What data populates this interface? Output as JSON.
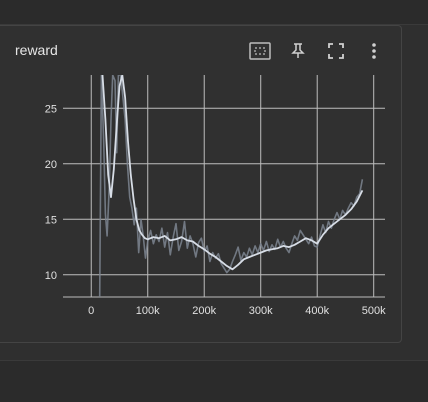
{
  "card": {
    "title": "reward",
    "toolbar": [
      {
        "name": "fit-domain-button",
        "icon": "fit-domain-icon"
      },
      {
        "name": "pin-button",
        "icon": "pin-icon"
      },
      {
        "name": "fullscreen-button",
        "icon": "fullscreen-icon"
      },
      {
        "name": "more-options-button",
        "icon": "more-vert-icon"
      }
    ]
  },
  "colors": {
    "background": "#2f2f2f",
    "card": "#303030",
    "grid": "#bdbdbd",
    "raw_line": "#7d8590",
    "smooth_line": "#d7dde6",
    "tick_text": "#e0e0e0"
  },
  "chart_data": {
    "type": "line",
    "title": "reward",
    "xlabel": "",
    "ylabel": "",
    "xlim": [
      -50000,
      520000
    ],
    "ylim": [
      8,
      28
    ],
    "xticks": [
      0,
      100000,
      200000,
      300000,
      400000,
      500000
    ],
    "xtick_labels": [
      "0",
      "100k",
      "200k",
      "300k",
      "400k",
      "500k"
    ],
    "yticks": [
      10,
      15,
      20,
      25
    ],
    "ytick_labels": [
      "10",
      "15",
      "20",
      "25"
    ],
    "grid": true,
    "series": [
      {
        "style": "raw",
        "x": [
          15000,
          18000,
          22000,
          25000,
          28000,
          32000,
          35000,
          38000,
          42000,
          45000,
          48000,
          52000,
          56000,
          60000,
          64000,
          68000,
          72000,
          76000,
          80000,
          84000,
          88000,
          92000,
          96000,
          100000,
          105000,
          110000,
          115000,
          120000,
          125000,
          130000,
          135000,
          140000,
          145000,
          150000,
          155000,
          160000,
          165000,
          170000,
          175000,
          180000,
          185000,
          190000,
          195000,
          200000,
          205000,
          210000,
          215000,
          220000,
          225000,
          230000,
          235000,
          240000,
          245000,
          250000,
          255000,
          260000,
          265000,
          270000,
          275000,
          280000,
          285000,
          290000,
          295000,
          300000,
          305000,
          310000,
          315000,
          320000,
          325000,
          330000,
          335000,
          340000,
          345000,
          350000,
          355000,
          360000,
          365000,
          370000,
          375000,
          380000,
          385000,
          390000,
          395000,
          400000,
          405000,
          410000,
          415000,
          420000,
          425000,
          430000,
          435000,
          440000,
          445000,
          450000,
          455000,
          460000,
          465000,
          470000,
          475000,
          480000
        ],
        "y": [
          8.0,
          28.0,
          22.0,
          15.5,
          13.5,
          18.0,
          24.0,
          28.0,
          27.5,
          21.0,
          28.0,
          28.0,
          26.0,
          24.0,
          20.0,
          17.0,
          16.0,
          14.5,
          16.0,
          12.0,
          15.0,
          13.5,
          11.5,
          13.0,
          14.0,
          12.8,
          13.6,
          13.0,
          14.2,
          12.5,
          13.8,
          11.8,
          13.4,
          14.6,
          12.2,
          13.0,
          14.8,
          12.4,
          13.5,
          12.8,
          11.6,
          12.9,
          13.3,
          12.1,
          12.6,
          11.2,
          12.0,
          11.5,
          11.9,
          11.0,
          10.6,
          10.2,
          10.5,
          11.2,
          11.8,
          12.5,
          11.3,
          12.0,
          11.6,
          12.4,
          11.8,
          12.6,
          12.0,
          12.8,
          12.2,
          13.0,
          12.1,
          12.7,
          12.3,
          13.2,
          12.5,
          13.0,
          12.4,
          12.0,
          12.8,
          13.5,
          13.1,
          14.0,
          13.6,
          13.2,
          12.8,
          13.4,
          12.6,
          12.5,
          13.5,
          14.5,
          13.8,
          14.8,
          14.2,
          15.0,
          15.6,
          15.0,
          15.8,
          15.4,
          16.0,
          16.5,
          16.2,
          17.0,
          17.3,
          18.6
        ]
      },
      {
        "style": "smoothed",
        "x": [
          20000,
          25000,
          30000,
          35000,
          40000,
          45000,
          50000,
          55000,
          60000,
          65000,
          70000,
          75000,
          80000,
          85000,
          90000,
          95000,
          100000,
          110000,
          120000,
          130000,
          140000,
          150000,
          160000,
          170000,
          180000,
          190000,
          200000,
          210000,
          220000,
          230000,
          240000,
          250000,
          260000,
          270000,
          280000,
          290000,
          300000,
          310000,
          320000,
          330000,
          340000,
          350000,
          360000,
          370000,
          380000,
          390000,
          400000,
          410000,
          420000,
          430000,
          440000,
          450000,
          460000,
          470000,
          480000
        ],
        "y": [
          28.0,
          24.0,
          19.0,
          17.0,
          19.5,
          23.5,
          27.0,
          28.0,
          26.0,
          22.0,
          19.0,
          16.8,
          15.0,
          14.0,
          13.6,
          13.3,
          13.2,
          13.4,
          13.3,
          13.5,
          13.1,
          13.2,
          13.4,
          13.1,
          13.0,
          12.6,
          12.3,
          11.9,
          11.6,
          11.2,
          10.8,
          10.5,
          10.9,
          11.4,
          11.6,
          11.8,
          12.0,
          12.2,
          12.3,
          12.4,
          12.6,
          12.5,
          12.7,
          13.0,
          13.3,
          13.1,
          12.8,
          13.6,
          14.2,
          14.6,
          15.0,
          15.4,
          15.9,
          16.6,
          17.6
        ]
      }
    ]
  }
}
